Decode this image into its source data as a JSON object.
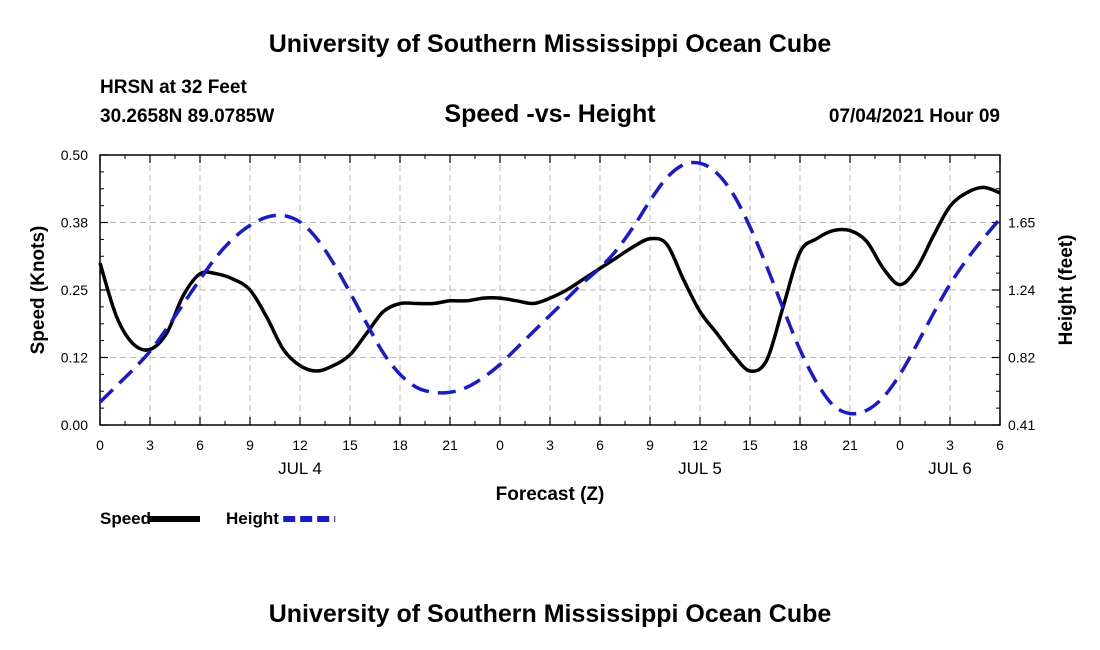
{
  "header": {
    "title": "University of Southern Mississippi Ocean Cube",
    "station": "HRSN at 32 Feet",
    "coordinates": "30.2658N  89.0785W",
    "chart_title": "Speed -vs- Height",
    "datetime": "07/04/2021 Hour 09"
  },
  "footer": {
    "title": "University of Southern Mississippi Ocean Cube"
  },
  "colors": {
    "speed": "#000000",
    "height": "#1a1acc",
    "grid": "#b8b8b8"
  },
  "chart_data": {
    "type": "line",
    "title": "Speed -vs- Height",
    "xlabel": "Forecast (Z)",
    "ylabel_left": "Speed (Knots)",
    "ylabel_right": "Height (feet)",
    "x_range_hours": [
      0,
      54
    ],
    "x_ticks": [
      "0",
      "3",
      "6",
      "9",
      "12",
      "15",
      "18",
      "21",
      "0",
      "3",
      "6",
      "9",
      "12",
      "15",
      "18",
      "21",
      "0",
      "3",
      "6"
    ],
    "date_labels": [
      {
        "label": "JUL 4",
        "hour": 12
      },
      {
        "label": "JUL 5",
        "hour": 36
      },
      {
        "label": "JUL 6",
        "hour": 51
      }
    ],
    "y_left": {
      "min": 0.0,
      "max": 0.5,
      "ticks": [
        "0.00",
        "0.12",
        "0.25",
        "0.38",
        "0.50"
      ]
    },
    "y_right": {
      "min": 0.41,
      "max": 2.06,
      "ticks": [
        "0.41",
        "0.82",
        "1.24",
        "1.65"
      ]
    },
    "grid": true,
    "legend": [
      {
        "name": "Speed",
        "style": "solid"
      },
      {
        "name": "Height",
        "style": "dashed"
      }
    ],
    "series": [
      {
        "name": "Speed",
        "axis": "left",
        "style": "solid",
        "hours": [
          0,
          1,
          2,
          3,
          4,
          5,
          6,
          7,
          8,
          9,
          10,
          11,
          12,
          13,
          14,
          15,
          16,
          17,
          18,
          19,
          20,
          21,
          22,
          23,
          24,
          25,
          26,
          27,
          28,
          29,
          30,
          31,
          32,
          33,
          34,
          35,
          36,
          37,
          38,
          39,
          40,
          41,
          42,
          43,
          44,
          45,
          46,
          47,
          48,
          49,
          50,
          51,
          52,
          53,
          54
        ],
        "values": [
          0.3,
          0.2,
          0.15,
          0.14,
          0.17,
          0.24,
          0.28,
          0.28,
          0.27,
          0.25,
          0.2,
          0.14,
          0.11,
          0.1,
          0.11,
          0.13,
          0.17,
          0.21,
          0.225,
          0.225,
          0.225,
          0.23,
          0.23,
          0.235,
          0.235,
          0.23,
          0.225,
          0.235,
          0.25,
          0.27,
          0.29,
          0.31,
          0.33,
          0.345,
          0.335,
          0.27,
          0.21,
          0.17,
          0.13,
          0.1,
          0.12,
          0.22,
          0.32,
          0.345,
          0.36,
          0.36,
          0.34,
          0.29,
          0.26,
          0.29,
          0.35,
          0.405,
          0.43,
          0.44,
          0.43
        ]
      },
      {
        "name": "Height",
        "axis": "right",
        "style": "dashed",
        "hours": [
          0,
          1,
          2,
          3,
          4,
          5,
          6,
          7,
          8,
          9,
          10,
          11,
          12,
          13,
          14,
          15,
          16,
          17,
          18,
          19,
          20,
          21,
          22,
          23,
          24,
          25,
          26,
          27,
          28,
          29,
          30,
          31,
          32,
          33,
          34,
          35,
          36,
          37,
          38,
          39,
          40,
          41,
          42,
          43,
          44,
          45,
          46,
          47,
          48,
          49,
          50,
          51,
          52,
          53,
          54
        ],
        "values": [
          0.55,
          0.65,
          0.75,
          0.86,
          1.0,
          1.15,
          1.3,
          1.44,
          1.55,
          1.63,
          1.68,
          1.69,
          1.65,
          1.55,
          1.4,
          1.22,
          1.03,
          0.85,
          0.72,
          0.64,
          0.61,
          0.61,
          0.64,
          0.7,
          0.78,
          0.88,
          0.98,
          1.08,
          1.18,
          1.28,
          1.37,
          1.48,
          1.62,
          1.78,
          1.92,
          2.0,
          2.01,
          1.95,
          1.82,
          1.62,
          1.38,
          1.12,
          0.87,
          0.67,
          0.53,
          0.48,
          0.5,
          0.58,
          0.72,
          0.9,
          1.09,
          1.27,
          1.42,
          1.55,
          1.67
        ]
      }
    ]
  }
}
